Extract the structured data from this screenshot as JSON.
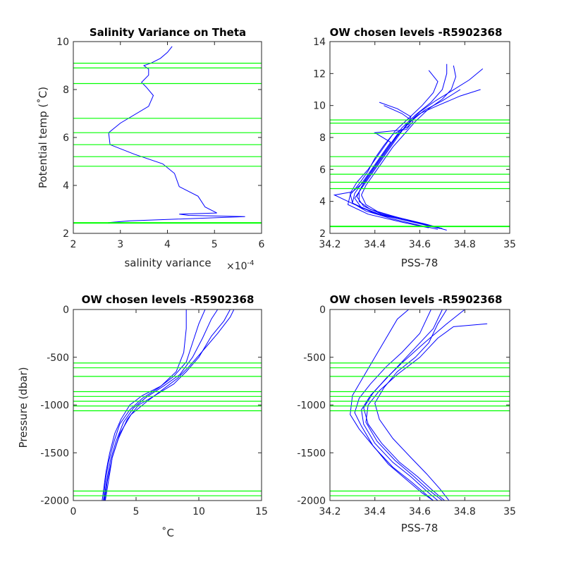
{
  "chart_data": [
    {
      "type": "line",
      "title": "Salinity Variance on Theta",
      "xlabel": "salinity variance",
      "x_exponent_label": "×10",
      "x_exponent": "-4",
      "ylabel": "Potential temp (˚C)",
      "xlim": [
        2,
        6
      ],
      "ylim": [
        2,
        10
      ],
      "xticks": [
        2,
        3,
        4,
        5,
        6
      ],
      "yticks": [
        2,
        4,
        6,
        8,
        10
      ],
      "grid": false,
      "line_color": "#0000ff",
      "level_color": "#00ff00",
      "chosen_levels": [
        9.1,
        8.9,
        8.25,
        6.8,
        6.2,
        5.7,
        5.2,
        4.8,
        2.45,
        2.42
      ],
      "series": [
        {
          "x": [
            4.1,
            4.0,
            3.85,
            3.65,
            3.5,
            3.6,
            3.6,
            3.45,
            3.55,
            3.7,
            3.6,
            3.0,
            2.75,
            2.78,
            3.3,
            3.9,
            4.15,
            4.25,
            4.65,
            4.8,
            5.05,
            4.25,
            4.45,
            5.65,
            3.2,
            2.75,
            2.75
          ],
          "y": [
            9.8,
            9.55,
            9.3,
            9.1,
            9.0,
            8.85,
            8.6,
            8.3,
            8.1,
            7.75,
            7.3,
            6.6,
            6.2,
            5.7,
            5.3,
            4.9,
            4.5,
            3.95,
            3.55,
            3.1,
            2.85,
            2.8,
            2.75,
            2.7,
            2.52,
            2.45,
            2.42
          ]
        }
      ]
    },
    {
      "type": "line",
      "title": "OW chosen levels -R5902368",
      "xlabel": "PSS-78",
      "ylabel": "",
      "xlim": [
        34.2,
        35
      ],
      "ylim": [
        2,
        14
      ],
      "xticks": [
        34.2,
        34.4,
        34.6,
        34.8,
        35
      ],
      "yticks": [
        2,
        4,
        6,
        8,
        10,
        12,
        14
      ],
      "grid": false,
      "line_color": "#0000ff",
      "level_color": "#00ff00",
      "chosen_levels": [
        9.1,
        8.9,
        8.25,
        6.8,
        6.2,
        5.7,
        5.2,
        4.8,
        2.45,
        2.42
      ],
      "series": [
        {
          "y": [
            12.6,
            12.0,
            11.0,
            10.2,
            9.4,
            8.6,
            7.8,
            7.0,
            6.2,
            5.4,
            4.6,
            4.0,
            3.5,
            3.0,
            2.6,
            2.3
          ],
          "x": [
            34.72,
            34.72,
            34.7,
            34.65,
            34.58,
            34.52,
            34.48,
            34.44,
            34.4,
            34.36,
            34.33,
            34.33,
            34.38,
            34.5,
            34.62,
            34.7
          ]
        },
        {
          "y": [
            12.2,
            11.5,
            10.8,
            10.0,
            9.2,
            8.4,
            7.6,
            6.8,
            6.0,
            5.2,
            4.5,
            3.9,
            3.4,
            2.9,
            2.5,
            2.25
          ],
          "x": [
            34.64,
            34.68,
            34.66,
            34.61,
            34.55,
            34.49,
            34.45,
            34.41,
            34.37,
            34.32,
            34.29,
            34.3,
            34.36,
            34.48,
            34.6,
            34.68
          ]
        },
        {
          "y": [
            11.0,
            10.6,
            10.0,
            9.5,
            8.8,
            8.0,
            7.2,
            6.4,
            5.6,
            4.8,
            4.2,
            3.6,
            3.1,
            2.7,
            2.4
          ],
          "x": [
            34.87,
            34.78,
            34.68,
            34.6,
            34.54,
            34.5,
            34.46,
            34.42,
            34.38,
            34.34,
            34.31,
            34.34,
            34.44,
            34.58,
            34.67
          ]
        },
        {
          "y": [
            12.3,
            11.6,
            10.9,
            10.3,
            9.6,
            8.9,
            8.1,
            7.3,
            6.5,
            5.7,
            4.9,
            4.3,
            3.7,
            3.2,
            2.8,
            2.4
          ],
          "x": [
            34.88,
            34.82,
            34.74,
            34.67,
            34.6,
            34.55,
            34.5,
            34.46,
            34.42,
            34.38,
            34.34,
            34.32,
            34.35,
            34.43,
            34.56,
            34.66
          ]
        },
        {
          "y": [
            10.2,
            9.8,
            9.3,
            8.7,
            8.2,
            7.5,
            6.7,
            5.9,
            5.1,
            4.4,
            3.8,
            3.2,
            2.7,
            2.35
          ],
          "x": [
            34.42,
            34.5,
            34.56,
            34.55,
            34.48,
            34.44,
            34.4,
            34.37,
            34.33,
            34.29,
            34.28,
            34.37,
            34.52,
            34.64
          ]
        },
        {
          "y": [
            10.0,
            9.5,
            9.0,
            8.5,
            8.3,
            7.7,
            6.9,
            6.1,
            5.3,
            4.5,
            3.9,
            3.3,
            2.8,
            2.45
          ],
          "x": [
            34.44,
            34.52,
            34.57,
            34.54,
            34.4,
            34.47,
            34.43,
            34.39,
            34.35,
            34.31,
            34.3,
            34.39,
            34.54,
            34.66
          ]
        },
        {
          "y": [
            11.0,
            10.3,
            9.7,
            9.0,
            8.3,
            7.6,
            6.8,
            6.0,
            5.2,
            4.6,
            4.4,
            3.8,
            3.2,
            2.7,
            2.3
          ],
          "x": [
            34.78,
            34.7,
            34.62,
            34.56,
            34.51,
            34.47,
            34.43,
            34.39,
            34.35,
            34.3,
            34.22,
            34.31,
            34.42,
            34.57,
            34.69
          ]
        },
        {
          "y": [
            12.5,
            11.8,
            11.0,
            10.4,
            9.8,
            9.0,
            8.2,
            7.4,
            6.6,
            5.8,
            5.0,
            4.4,
            3.8,
            3.3,
            2.9,
            2.55,
            2.2
          ],
          "x": [
            34.75,
            34.76,
            34.74,
            34.7,
            34.64,
            34.58,
            34.53,
            34.48,
            34.44,
            34.4,
            34.36,
            34.34,
            34.36,
            34.42,
            34.53,
            34.63,
            34.72
          ]
        }
      ]
    },
    {
      "type": "line",
      "title": "OW chosen levels -R5902368",
      "xlabel": "˚C",
      "ylabel": "Pressure (dbar)",
      "xlim": [
        0,
        15
      ],
      "ylim": [
        -2000,
        0
      ],
      "xticks": [
        0,
        5,
        10,
        15
      ],
      "yticks": [
        -2000,
        -1500,
        -1000,
        -500,
        0
      ],
      "grid": false,
      "line_color": "#0000ff",
      "level_color": "#00ff00",
      "chosen_levels": [
        -560,
        -610,
        -700,
        -860,
        -910,
        -960,
        -1010,
        -1060,
        -1900,
        -1950
      ],
      "series": [
        {
          "x": [
            9.0,
            9.0,
            8.8,
            8.2,
            7.0,
            5.5,
            4.5,
            3.8,
            3.3,
            2.9,
            2.6,
            2.4,
            2.3
          ],
          "y": [
            0,
            -200,
            -450,
            -650,
            -800,
            -900,
            -1000,
            -1150,
            -1300,
            -1500,
            -1700,
            -1900,
            -2000
          ]
        },
        {
          "x": [
            12.5,
            12.0,
            11.0,
            10.0,
            9.0,
            8.0,
            6.5,
            5.2,
            4.3,
            3.6,
            3.1,
            2.7,
            2.5
          ],
          "y": [
            0,
            -120,
            -280,
            -500,
            -650,
            -780,
            -900,
            -1000,
            -1150,
            -1350,
            -1550,
            -1800,
            -2000
          ]
        },
        {
          "x": [
            10.5,
            10.0,
            9.5,
            9.0,
            8.0,
            6.8,
            5.5,
            4.5,
            3.7,
            3.2,
            2.8,
            2.55,
            2.4
          ],
          "y": [
            0,
            -150,
            -350,
            -550,
            -700,
            -820,
            -930,
            -1050,
            -1200,
            -1400,
            -1600,
            -1800,
            -2000
          ]
        },
        {
          "x": [
            11.5,
            11.0,
            10.3,
            9.5,
            8.5,
            7.2,
            5.8,
            4.8,
            4.0,
            3.4,
            2.95,
            2.65,
            2.45
          ],
          "y": [
            0,
            -100,
            -300,
            -500,
            -680,
            -800,
            -920,
            -1030,
            -1180,
            -1380,
            -1580,
            -1800,
            -2000
          ]
        },
        {
          "x": [
            12.8,
            12.5,
            11.5,
            10.2,
            9.2,
            8.3,
            7.0,
            5.8,
            4.6,
            3.7,
            3.1,
            2.8,
            2.55
          ],
          "y": [
            0,
            -80,
            -250,
            -450,
            -600,
            -720,
            -850,
            -970,
            -1100,
            -1300,
            -1550,
            -1800,
            -2000
          ]
        }
      ]
    },
    {
      "type": "line",
      "title": "OW chosen levels -R5902368",
      "xlabel": "PSS-78",
      "ylabel": "",
      "xlim": [
        34.2,
        35
      ],
      "ylim": [
        -2000,
        0
      ],
      "xticks": [
        34.2,
        34.4,
        34.6,
        34.8,
        35
      ],
      "yticks": [
        -2000,
        -1500,
        -1000,
        -500,
        0
      ],
      "grid": false,
      "line_color": "#0000ff",
      "level_color": "#00ff00",
      "chosen_levels": [
        -560,
        -610,
        -700,
        -860,
        -910,
        -960,
        -1010,
        -1060,
        -1900,
        -1950
      ],
      "series": [
        {
          "x": [
            34.7,
            34.66,
            34.58,
            34.5,
            34.44,
            34.38,
            34.34,
            34.35,
            34.4,
            34.48,
            34.56,
            34.63,
            34.68
          ],
          "y": [
            0,
            -200,
            -400,
            -600,
            -750,
            -900,
            -1050,
            -1200,
            -1400,
            -1600,
            -1750,
            -1900,
            -2000
          ]
        },
        {
          "x": [
            34.8,
            34.72,
            34.62,
            34.52,
            34.45,
            34.39,
            34.35,
            34.37,
            34.43,
            34.51,
            34.59,
            34.66,
            34.71
          ],
          "y": [
            0,
            -150,
            -350,
            -560,
            -720,
            -880,
            -1030,
            -1200,
            -1400,
            -1600,
            -1750,
            -1900,
            -2000
          ]
        },
        {
          "x": [
            34.55,
            34.5,
            34.45,
            34.4,
            34.35,
            34.3,
            34.29,
            34.33,
            34.4,
            34.48,
            34.56,
            34.62,
            34.66
          ],
          "y": [
            0,
            -100,
            -300,
            -500,
            -700,
            -900,
            -1100,
            -1250,
            -1450,
            -1650,
            -1800,
            -1920,
            -2000
          ]
        },
        {
          "x": [
            34.9,
            34.75,
            34.68,
            34.6,
            34.5,
            34.42,
            34.37,
            34.36,
            34.41,
            34.49,
            34.57,
            34.64,
            34.7
          ],
          "y": [
            -150,
            -180,
            -300,
            -500,
            -680,
            -850,
            -1000,
            -1180,
            -1380,
            -1580,
            -1740,
            -1890,
            -2000
          ]
        },
        {
          "x": [
            34.65,
            34.6,
            34.52,
            34.45,
            34.38,
            34.33,
            34.31,
            34.34,
            34.39,
            34.46,
            34.54,
            34.61,
            34.66
          ],
          "y": [
            0,
            -250,
            -450,
            -600,
            -780,
            -930,
            -1080,
            -1220,
            -1420,
            -1620,
            -1780,
            -1920,
            -2000
          ]
        },
        {
          "x": [
            34.72,
            34.68,
            34.64,
            34.58,
            34.5,
            34.44,
            34.4,
            34.42,
            34.48,
            34.56,
            34.63,
            34.69,
            34.73
          ],
          "y": [
            0,
            -150,
            -350,
            -500,
            -650,
            -820,
            -980,
            -1150,
            -1350,
            -1550,
            -1720,
            -1880,
            -2000
          ]
        }
      ]
    }
  ]
}
